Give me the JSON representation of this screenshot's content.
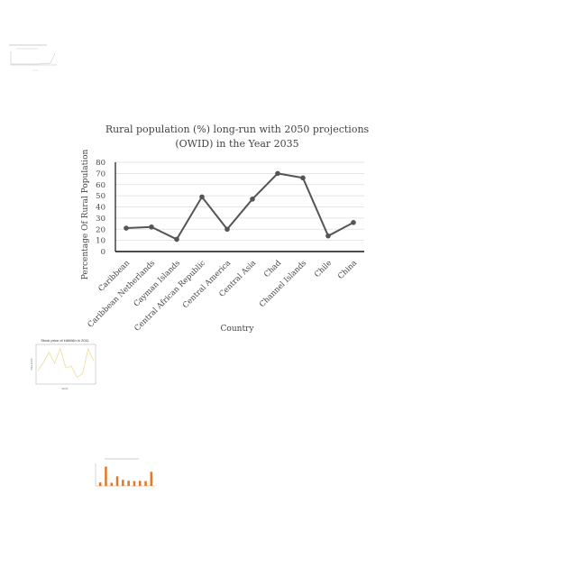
{
  "chart_data": [
    {
      "type": "line",
      "title_lines": [
        "Rural population (%) long-run with 2050 projections",
        "(OWID) in the Year 2035"
      ],
      "xlabel": "Country",
      "ylabel": "Percentage Of Rural Population",
      "categories": [
        "Caribbean",
        "Caribbean Netherlands",
        "Cayman Islands",
        "Central African Republic",
        "Central America",
        "Central Asia",
        "Chad",
        "Channel Islands",
        "Chile",
        "China"
      ],
      "values": [
        21,
        22,
        11,
        49,
        20,
        47,
        70,
        66,
        14,
        26
      ],
      "ylim": [
        0,
        80
      ],
      "yticks": [
        0,
        10,
        20,
        30,
        40,
        50,
        60,
        70,
        80
      ],
      "grid": true,
      "line_color": "#555555"
    },
    {
      "type": "line",
      "title": "Stock price of HAWAh in 2011",
      "xlabel": "Month",
      "ylabel": "Price (USD)",
      "values": [
        2.1,
        3.6,
        5.4,
        3.4,
        6.1,
        2.6,
        2.9,
        0.9,
        1.6,
        6.0,
        3.8
      ],
      "ylim": [
        0,
        6.5
      ],
      "line_color": "#f0e0a8"
    },
    {
      "type": "bar",
      "values": [
        11,
        60,
        10,
        30,
        19,
        16,
        15,
        16,
        15,
        44
      ],
      "ylim": [
        0,
        70
      ],
      "bar_color": "#e07a2a"
    }
  ]
}
